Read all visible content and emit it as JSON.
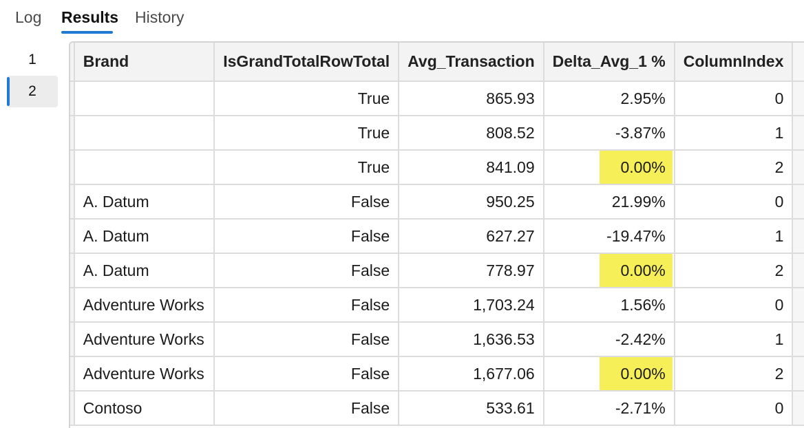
{
  "tabs": {
    "log": "Log",
    "results": "Results",
    "history": "History"
  },
  "result_sets": [
    "1",
    "2"
  ],
  "columns": [
    "Brand",
    "IsGrandTotalRowTotal",
    "Avg_Transaction",
    "Delta_Avg_1 %",
    "ColumnIndex"
  ],
  "highlight_color": "#f6ef58",
  "rows": [
    {
      "brand": "",
      "gt": "True",
      "avg": "865.93",
      "delta": "2.95%",
      "ci": "0",
      "hl": false
    },
    {
      "brand": "",
      "gt": "True",
      "avg": "808.52",
      "delta": "-3.87%",
      "ci": "1",
      "hl": false
    },
    {
      "brand": "",
      "gt": "True",
      "avg": "841.09",
      "delta": "0.00%",
      "ci": "2",
      "hl": true
    },
    {
      "brand": "A. Datum",
      "gt": "False",
      "avg": "950.25",
      "delta": "21.99%",
      "ci": "0",
      "hl": false
    },
    {
      "brand": "A. Datum",
      "gt": "False",
      "avg": "627.27",
      "delta": "-19.47%",
      "ci": "1",
      "hl": false
    },
    {
      "brand": "A. Datum",
      "gt": "False",
      "avg": "778.97",
      "delta": "0.00%",
      "ci": "2",
      "hl": true
    },
    {
      "brand": "Adventure Works",
      "gt": "False",
      "avg": "1,703.24",
      "delta": "1.56%",
      "ci": "0",
      "hl": false
    },
    {
      "brand": "Adventure Works",
      "gt": "False",
      "avg": "1,636.53",
      "delta": "-2.42%",
      "ci": "1",
      "hl": false
    },
    {
      "brand": "Adventure Works",
      "gt": "False",
      "avg": "1,677.06",
      "delta": "0.00%",
      "ci": "2",
      "hl": true
    },
    {
      "brand": "Contoso",
      "gt": "False",
      "avg": "533.61",
      "delta": "-2.71%",
      "ci": "0",
      "hl": false
    }
  ]
}
